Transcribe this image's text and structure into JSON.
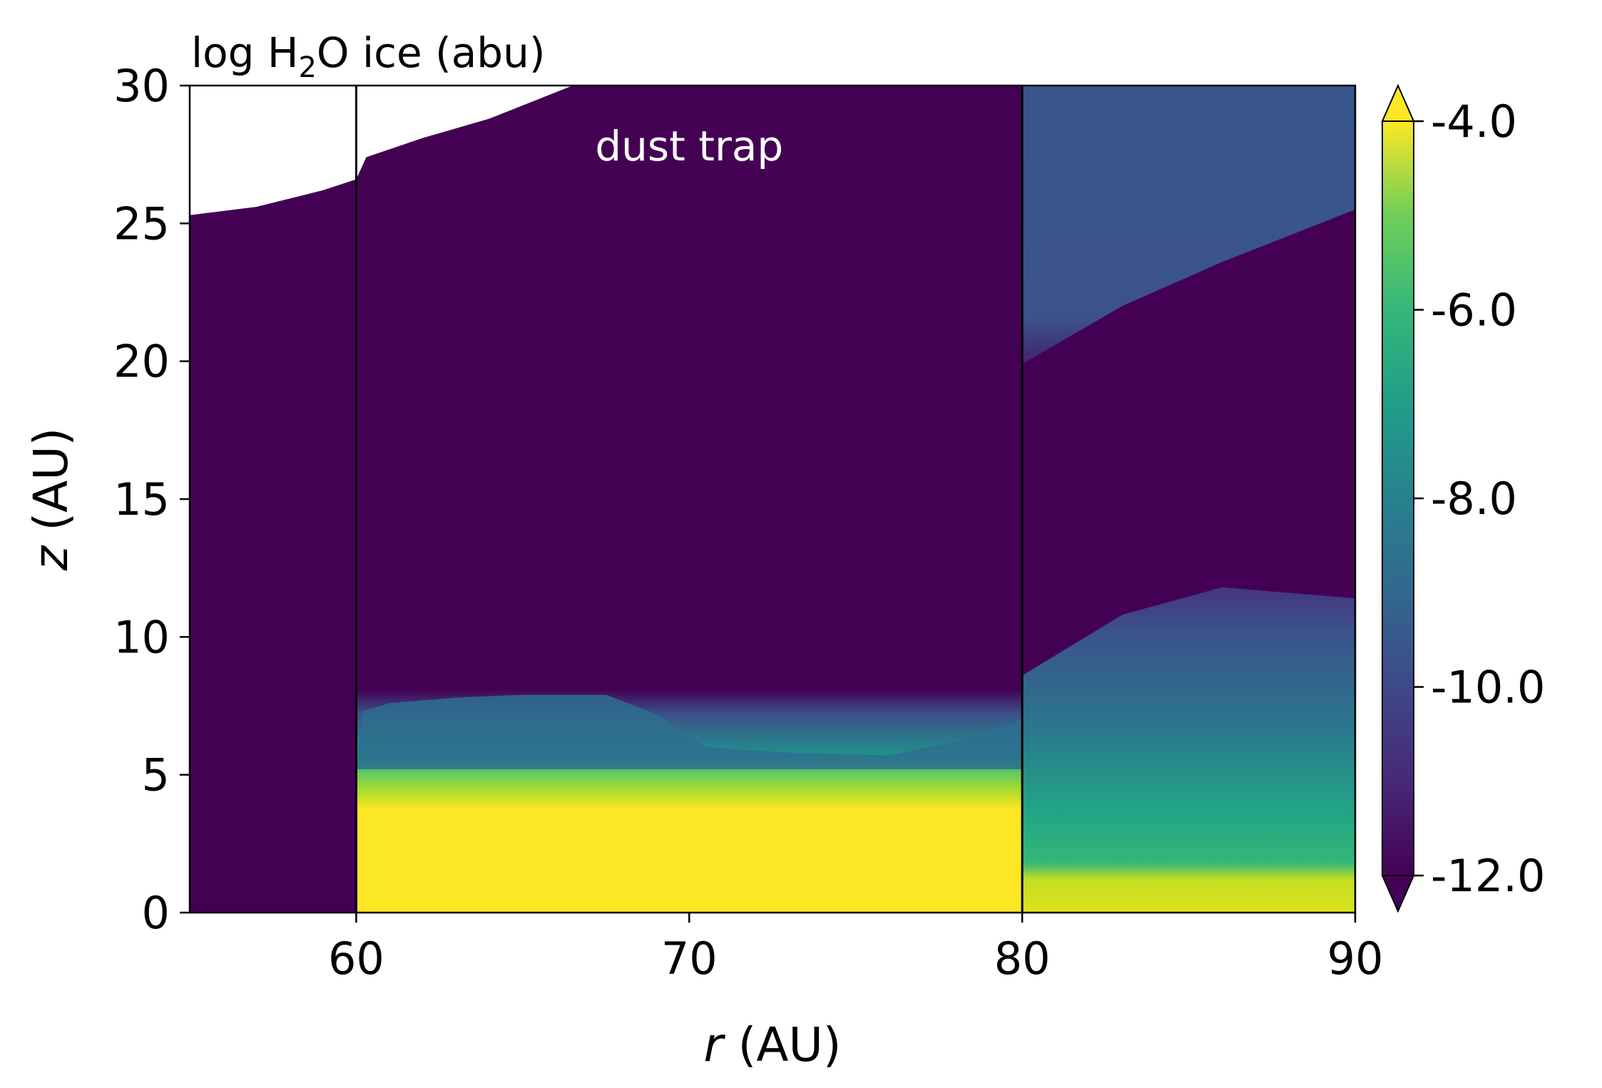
{
  "chart_data": {
    "type": "heatmap",
    "title": "log H2O ice (abu)",
    "title_parts": {
      "pre": "log H",
      "sub": "2",
      "post": "O ice (abu)"
    },
    "xlabel": {
      "var": "r",
      "unit": " (AU)"
    },
    "ylabel": {
      "var": "z",
      "unit": " (AU)"
    },
    "xlim": [
      55,
      90
    ],
    "ylim": [
      0,
      30
    ],
    "x_ticks": [
      60,
      70,
      80,
      90
    ],
    "y_ticks": [
      0,
      5,
      10,
      15,
      20,
      25,
      30
    ],
    "colorbar": {
      "cmap": "viridis",
      "min": -12.0,
      "max": -4.0,
      "extend": "both",
      "ticks": [
        -12.0,
        -10.0,
        -8.0,
        -6.0,
        -4.0
      ],
      "tick_labels": [
        "-12.0",
        "-10.0",
        "-8.0",
        "-6.0",
        "-4.0"
      ]
    },
    "vertical_lines": [
      60,
      80
    ],
    "annotation": {
      "text": "dust trap",
      "x": 70,
      "y": 27.8
    },
    "grid": false,
    "no_data_region": {
      "description": "unfilled (white) top-left of grid",
      "boundary": [
        [
          55,
          25.3
        ],
        [
          57,
          25.6
        ],
        [
          59,
          26.2
        ],
        [
          60,
          26.6
        ],
        [
          60.3,
          27.4
        ],
        [
          62,
          28.1
        ],
        [
          64,
          28.8
        ],
        [
          66.5,
          30
        ]
      ]
    },
    "regions": [
      {
        "r_range": [
          55,
          60
        ],
        "z_range": [
          0,
          25.3
        ],
        "log_abundance": -12.0
      },
      {
        "r_range": [
          60,
          80
        ],
        "z_range": [
          0,
          3.8
        ],
        "log_abundance": -4.0
      },
      {
        "r_range": [
          60,
          80
        ],
        "z_range": [
          3.8,
          5.5
        ],
        "log_abundance": -7.0
      },
      {
        "r_range": [
          60,
          68
        ],
        "z_range": [
          5.5,
          7.8
        ],
        "log_abundance": -9.0
      },
      {
        "r_range": [
          60,
          80
        ],
        "z_range": [
          7.8,
          30
        ],
        "log_abundance": -12.0
      },
      {
        "r_range": [
          80,
          90
        ],
        "z_range": [
          0,
          1.5
        ],
        "log_abundance": -4.5
      },
      {
        "r_range": [
          80,
          90
        ],
        "z_range": [
          1.5,
          6.0
        ],
        "log_abundance": -8.5
      },
      {
        "r_range": [
          80,
          90
        ],
        "z_range": [
          6.0,
          11.0
        ],
        "log_abundance": -10.5
      },
      {
        "r_range": [
          80,
          90
        ],
        "z_range": [
          11.0,
          20.0
        ],
        "log_abundance": -12.0
      },
      {
        "r_range": [
          80,
          90
        ],
        "z_range": [
          20.0,
          30
        ],
        "log_abundance": -10.3
      }
    ]
  }
}
